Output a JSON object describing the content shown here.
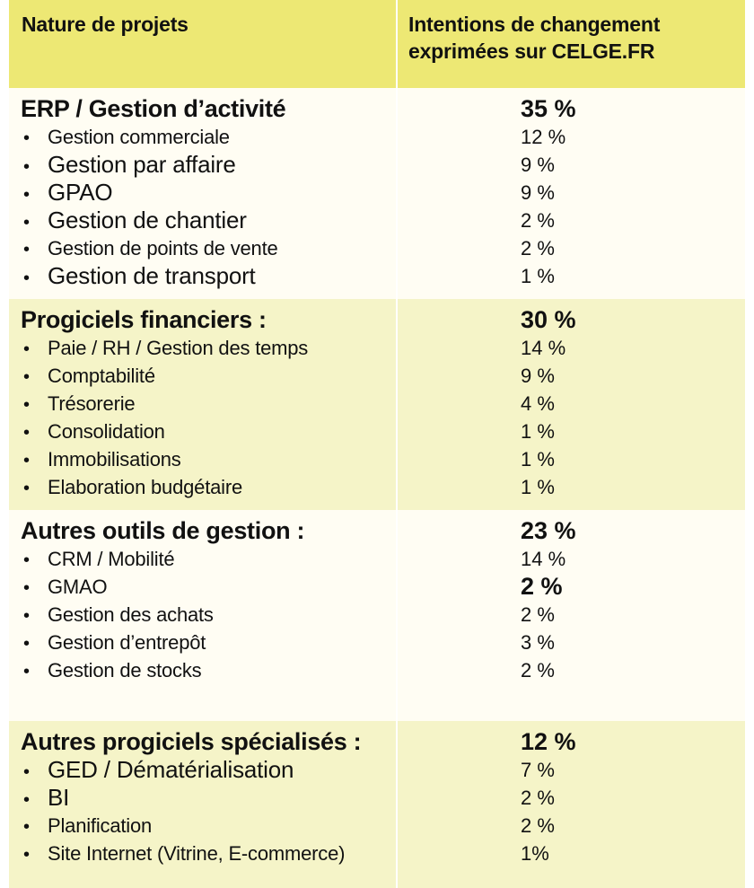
{
  "header": {
    "col1": "Nature de projets",
    "col2_line1": "Intentions de changement",
    "col2_line2": "exprimées sur CELGE.FR"
  },
  "sections": [
    {
      "title": "ERP / Gestion d’activité",
      "total": "35 %",
      "items": [
        {
          "label": "Gestion commerciale",
          "value": "12 %"
        },
        {
          "label": "Gestion par affaire",
          "value": "9 %"
        },
        {
          "label": "GPAO",
          "value": "9 %"
        },
        {
          "label": "Gestion de chantier",
          "value": "2 %"
        },
        {
          "label": "Gestion de points de vente",
          "value": "2 %"
        },
        {
          "label": "Gestion de transport",
          "value": "1 %"
        }
      ]
    },
    {
      "title": "Progiciels financiers :",
      "total": "30 %",
      "items": [
        {
          "label": "Paie / RH / Gestion des temps",
          "value": "14 %"
        },
        {
          "label": "Comptabilité",
          "value": "9 %"
        },
        {
          "label": "Trésorerie",
          "value": "4 %"
        },
        {
          "label": "Consolidation",
          "value": "1 %"
        },
        {
          "label": "Immobilisations",
          "value": "1 %"
        },
        {
          "label": "Elaboration budgétaire",
          "value": "1 %"
        }
      ]
    },
    {
      "title": "Autres outils de gestion :",
      "total": "23 %",
      "items": [
        {
          "label": "CRM / Mobilité",
          "value": "14 %"
        },
        {
          "label": "GMAO",
          "value": "2 %"
        },
        {
          "label": "Gestion des achats",
          "value": "2 %"
        },
        {
          "label": "Gestion d’entrepôt",
          "value": "3 %"
        },
        {
          "label": "Gestion de stocks",
          "value": "2 %"
        }
      ]
    },
    {
      "title": "Autres progiciels spécialisés :",
      "total": "12 %",
      "items": [
        {
          "label": "GED / Dématérialisation",
          "value": "7 %"
        },
        {
          "label": "BI",
          "value": "2 %"
        },
        {
          "label": "Planification",
          "value": "2 %"
        },
        {
          "label": "Site Internet (Vitrine, E-commerce)",
          "value": "1%"
        }
      ]
    }
  ],
  "bullet": "•",
  "colors": {
    "header_bg": "#ede874",
    "band_yellow": "#f5f4c8",
    "band_white": "#fffdf3"
  }
}
